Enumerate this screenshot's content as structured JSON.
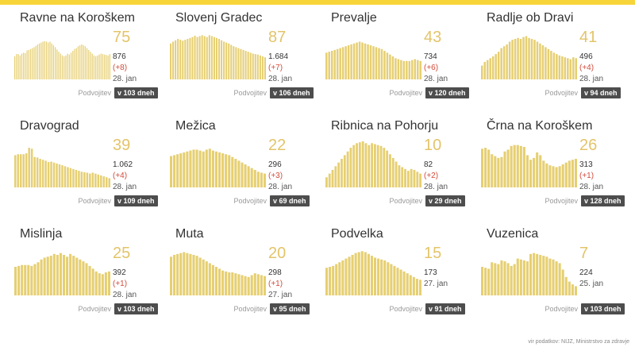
{
  "colors": {
    "bar": "#e6cf72",
    "big_number": "#e3c46a",
    "delta": "#d24b3a",
    "badge": "#4d4d4d",
    "top_bar": "#f7d43a"
  },
  "doubling_label": "Podvojitev",
  "source": "vir podatkov: NIJZ, Ministrstvo za zdravje",
  "chart_data": [
    {
      "type": "bar",
      "title": "Ravne na Koroškem",
      "active": "75",
      "total": "876",
      "delta": "(+8)",
      "date": "28. jan",
      "doubling": "v 103 dneh",
      "values": [
        50,
        55,
        55,
        52,
        56,
        58,
        57,
        63,
        64,
        66,
        68,
        70,
        73,
        76,
        78,
        80,
        82,
        83,
        82,
        80,
        82,
        78,
        74,
        70,
        65,
        60,
        56,
        52,
        50,
        52,
        56,
        54,
        58,
        62,
        66,
        68,
        72,
        74,
        76,
        74,
        72,
        68,
        64,
        60,
        56,
        52,
        50,
        52,
        54,
        56,
        55,
        54,
        53,
        52,
        55
      ]
    },
    {
      "type": "bar",
      "title": "Slovenj Gradec",
      "active": "87",
      "total": "1.684",
      "delta": "(+7)",
      "date": "28. jan",
      "doubling": "v 106 dneh",
      "values": [
        78,
        82,
        85,
        88,
        86,
        84,
        86,
        88,
        90,
        92,
        95,
        92,
        94,
        96,
        94,
        92,
        96,
        94,
        92,
        90,
        88,
        85,
        82,
        80,
        78,
        75,
        72,
        70,
        68,
        66,
        64,
        62,
        60,
        58,
        56,
        55,
        54,
        52,
        50,
        48
      ]
    },
    {
      "type": "bar",
      "title": "Prevalje",
      "active": "43",
      "total": "734",
      "delta": "(+6)",
      "date": "28. jan",
      "doubling": "v 120 dneh",
      "values": [
        58,
        60,
        62,
        64,
        66,
        68,
        70,
        72,
        74,
        76,
        78,
        80,
        82,
        80,
        78,
        76,
        74,
        72,
        70,
        68,
        66,
        62,
        58,
        54,
        50,
        46,
        44,
        42,
        40,
        40,
        40,
        42,
        44,
        42,
        40
      ]
    },
    {
      "type": "bar",
      "title": "Radlje ob Dravi",
      "active": "41",
      "total": "496",
      "delta": "(+4)",
      "date": "28. jan",
      "doubling": "v 94 dneh",
      "values": [
        30,
        38,
        42,
        46,
        50,
        55,
        60,
        68,
        72,
        76,
        82,
        86,
        88,
        90,
        88,
        92,
        94,
        90,
        88,
        86,
        82,
        78,
        74,
        70,
        66,
        62,
        58,
        55,
        52,
        50,
        48,
        46,
        44,
        48,
        46
      ]
    },
    {
      "type": "bar",
      "title": "Dravograd",
      "active": "39",
      "total": "1.062",
      "delta": "(+4)",
      "date": "28. jan",
      "doubling": "v 109 dneh",
      "values": [
        70,
        72,
        72,
        72,
        74,
        86,
        84,
        66,
        65,
        62,
        60,
        58,
        55,
        56,
        54,
        52,
        50,
        48,
        46,
        44,
        42,
        40,
        38,
        36,
        34,
        33,
        32,
        30,
        32,
        30,
        28,
        26,
        24,
        22,
        20
      ]
    },
    {
      "type": "bar",
      "title": "Mežica",
      "active": "22",
      "total": "296",
      "delta": "(+3)",
      "date": "28. jan",
      "doubling": "v 69 dneh",
      "values": [
        68,
        70,
        72,
        74,
        76,
        78,
        80,
        82,
        82,
        80,
        78,
        82,
        84,
        80,
        78,
        76,
        74,
        72,
        70,
        66,
        62,
        58,
        54,
        50,
        46,
        42,
        38,
        34,
        32,
        30
      ]
    },
    {
      "type": "bar",
      "title": "Ribnica na Pohorju",
      "active": "10",
      "total": "82",
      "delta": "(+2)",
      "date": "28. jan",
      "doubling": "v 29 dneh",
      "values": [
        22,
        30,
        38,
        46,
        54,
        62,
        70,
        78,
        86,
        92,
        96,
        98,
        100,
        96,
        92,
        96,
        94,
        92,
        90,
        86,
        80,
        72,
        64,
        56,
        48,
        44,
        40,
        36,
        40,
        38,
        34,
        30
      ]
    },
    {
      "type": "bar",
      "title": "Črna na Koroškem",
      "active": "26",
      "total": "313",
      "delta": "(+1)",
      "date": "28. jan",
      "doubling": "v 128 dneh",
      "values": [
        84,
        86,
        82,
        72,
        68,
        64,
        66,
        78,
        82,
        90,
        92,
        92,
        90,
        88,
        70,
        60,
        64,
        76,
        70,
        58,
        52,
        48,
        46,
        44,
        46,
        50,
        54,
        58,
        60,
        62
      ]
    },
    {
      "type": "bar",
      "title": "Mislinja",
      "active": "25",
      "total": "392",
      "delta": "(+1)",
      "date": "28. jan",
      "doubling": "v 103 dneh",
      "values": [
        62,
        64,
        66,
        66,
        66,
        64,
        68,
        72,
        78,
        82,
        84,
        86,
        90,
        88,
        92,
        88,
        84,
        90,
        86,
        82,
        78,
        74,
        70,
        64,
        58,
        52,
        48,
        46,
        50,
        52
      ]
    },
    {
      "type": "bar",
      "title": "Muta",
      "active": "20",
      "total": "298",
      "delta": "(+1)",
      "date": "27. jan",
      "doubling": "v 95 dneh",
      "values": [
        84,
        88,
        90,
        92,
        94,
        92,
        90,
        88,
        86,
        82,
        78,
        74,
        70,
        66,
        62,
        58,
        54,
        52,
        50,
        50,
        48,
        46,
        44,
        42,
        40,
        44,
        48,
        46,
        44,
        42
      ]
    },
    {
      "type": "bar",
      "title": "Podvelka",
      "active": "15",
      "total": "173",
      "delta": "",
      "date": "27. jan",
      "doubling": "v 91 dneh",
      "values": [
        60,
        62,
        64,
        68,
        72,
        76,
        80,
        84,
        88,
        92,
        94,
        96,
        94,
        90,
        86,
        82,
        80,
        78,
        76,
        72,
        68,
        64,
        60,
        56,
        52,
        48,
        44,
        40,
        36,
        34
      ]
    },
    {
      "type": "bar",
      "title": "Vuzenica",
      "active": "7",
      "total": "224",
      "delta": "",
      "date": "25. jan",
      "doubling": "v 103 dneh",
      "values": [
        62,
        60,
        58,
        72,
        70,
        68,
        76,
        74,
        70,
        64,
        68,
        80,
        78,
        76,
        74,
        90,
        92,
        90,
        88,
        86,
        84,
        80,
        78,
        74,
        70,
        56,
        40,
        30,
        24,
        20
      ]
    }
  ]
}
